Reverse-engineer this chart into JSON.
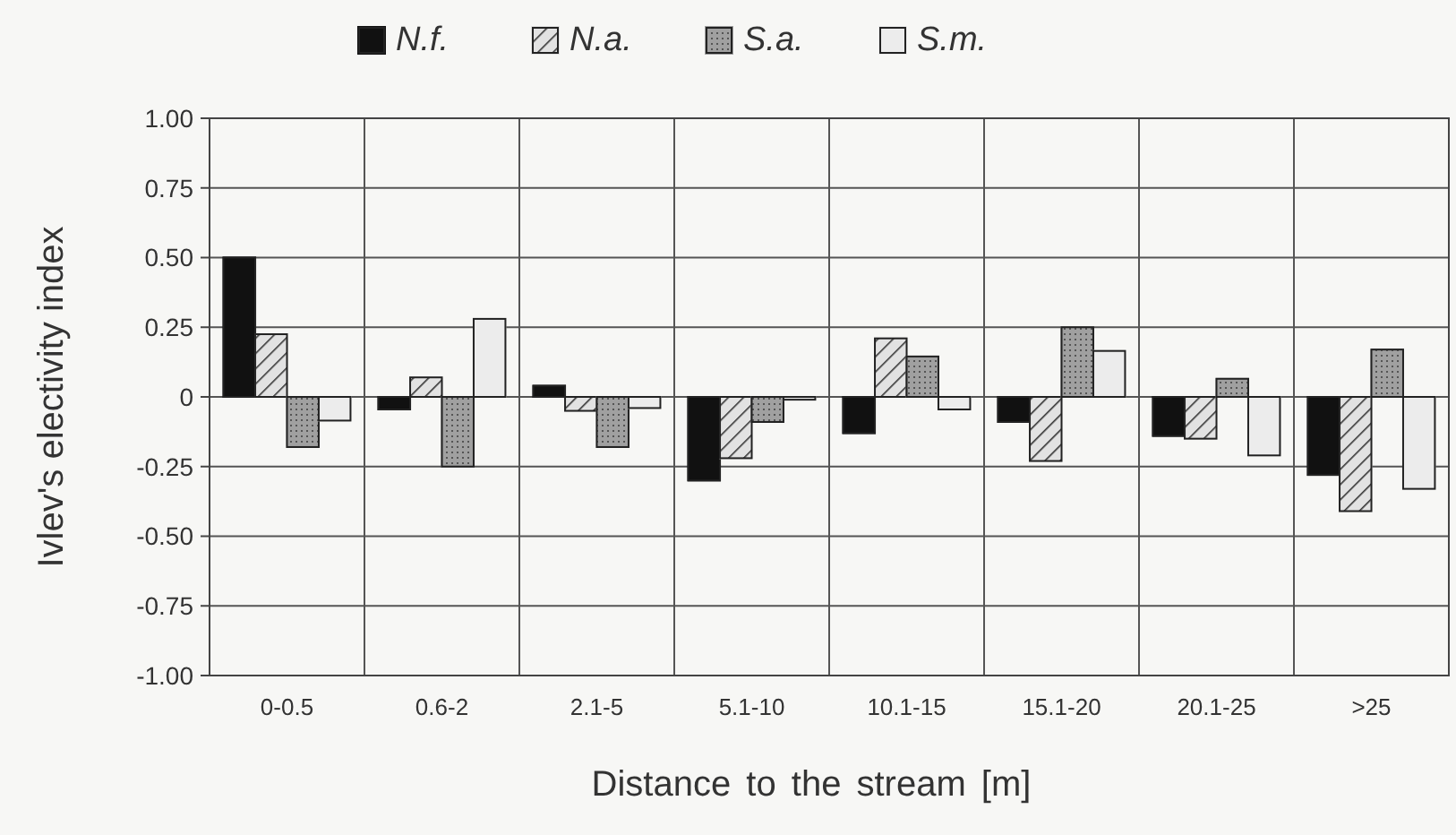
{
  "chart_data": {
    "type": "bar",
    "xlabel": "Distance to the stream [m]",
    "ylabel": "Ivlev's electivity index",
    "categories": [
      "0-0.5",
      "0.6-2",
      "2.1-5",
      "5.1-10",
      "10.1-15",
      "15.1-20",
      "20.1-25",
      ">25"
    ],
    "series": [
      {
        "name": "N.f.",
        "color": "#111111",
        "values": [
          0.5,
          -0.045,
          0.04,
          -0.3,
          -0.13,
          -0.09,
          -0.14,
          -0.28
        ]
      },
      {
        "name": "N.a.",
        "color": "#e2e2e2",
        "values": [
          0.225,
          0.07,
          -0.05,
          -0.22,
          0.21,
          -0.23,
          -0.15,
          -0.41
        ]
      },
      {
        "name": "S.a.",
        "color": "#a0a0a0",
        "values": [
          -0.18,
          -0.25,
          -0.18,
          -0.09,
          0.145,
          0.25,
          0.065,
          0.17
        ]
      },
      {
        "name": "S.m.",
        "color": "#ececec",
        "values": [
          -0.085,
          0.28,
          -0.04,
          -0.01,
          -0.045,
          0.165,
          -0.21,
          -0.33
        ]
      }
    ],
    "ylim": [
      -1,
      1
    ],
    "yticks": [
      {
        "value": -1,
        "label": "-1.00"
      },
      {
        "value": -0.75,
        "label": "-0.75"
      },
      {
        "value": -0.5,
        "label": "-0.50"
      },
      {
        "value": -0.25,
        "label": "-0.25"
      },
      0,
      {
        "value": 0.25,
        "label": "0.25"
      },
      {
        "value": 0.5,
        "label": "0.50"
      },
      {
        "value": 0.75,
        "label": "0.75"
      },
      {
        "value": 1,
        "label": "1.00"
      }
    ],
    "grid": true,
    "legend": "top"
  }
}
